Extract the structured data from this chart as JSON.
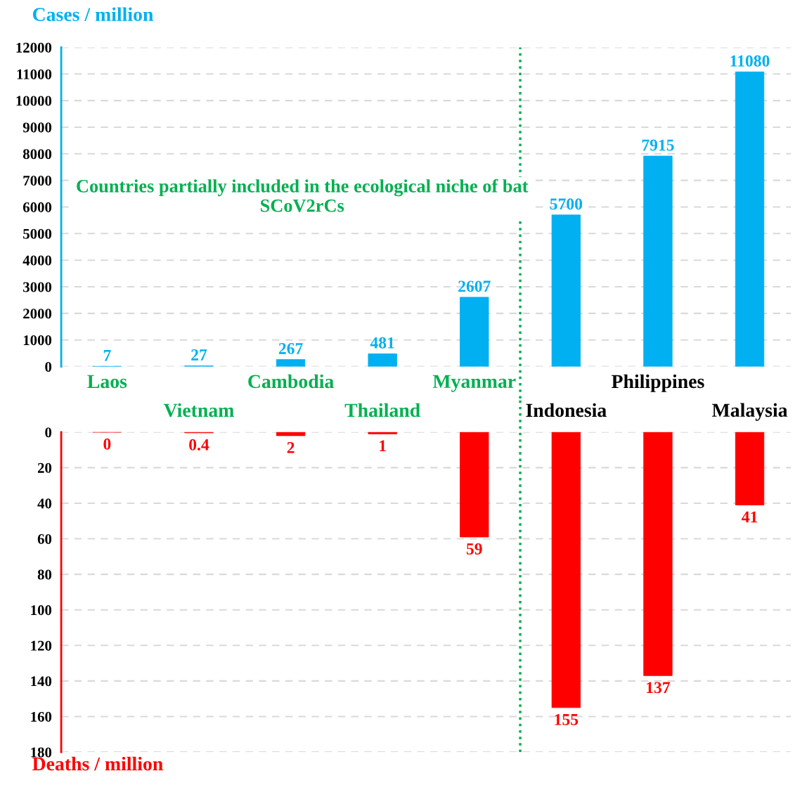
{
  "chart_data": [
    {
      "type": "bar",
      "ylabel": "Cases / million",
      "categories": [
        "Laos",
        null,
        "Cambodia",
        null,
        "Myanmar",
        null,
        "Philippines",
        null
      ],
      "series": [
        {
          "color": "#00b0f0",
          "values": [
            7,
            27,
            267,
            481,
            2607,
            5700,
            7915,
            11080
          ]
        }
      ],
      "ylim": [
        0,
        12000
      ],
      "yticks": [
        0,
        1000,
        2000,
        3000,
        4000,
        5000,
        6000,
        7000,
        8000,
        9000,
        10000,
        11000,
        12000
      ],
      "grid": "y",
      "data_labels": true,
      "annotations": [
        "Countries partially included in the ecological niche of bat SCoV2rCs"
      ]
    },
    {
      "type": "bar",
      "ylabel": "Deaths / million",
      "categories": [
        null,
        "Vietnam",
        null,
        "Thailand",
        null,
        "Indonesia",
        null,
        "Malaysia"
      ],
      "series": [
        {
          "color": "#ff0000",
          "values": [
            0,
            0.4,
            2,
            1,
            59,
            155,
            137,
            41
          ]
        }
      ],
      "ylim": [
        180,
        0
      ],
      "yticks": [
        0,
        20,
        40,
        60,
        80,
        100,
        120,
        140,
        160,
        180
      ],
      "grid": "y",
      "data_labels": true
    }
  ]
}
